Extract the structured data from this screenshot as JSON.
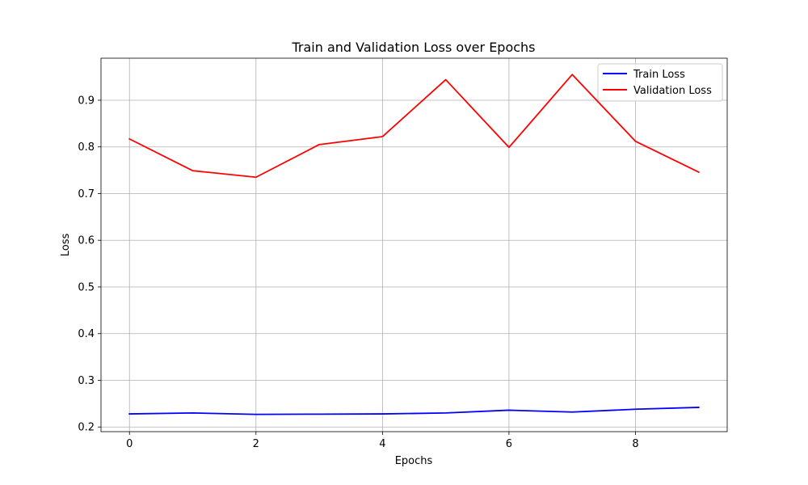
{
  "chart_data": {
    "type": "line",
    "title": "Train and Validation Loss over Epochs",
    "xlabel": "Epochs",
    "ylabel": "Loss",
    "x": [
      0,
      1,
      2,
      3,
      4,
      5,
      6,
      7,
      8,
      9
    ],
    "xlim": [
      -0.45,
      9.45
    ],
    "ylim": [
      0.19,
      0.99
    ],
    "x_ticks": [
      0,
      2,
      4,
      6,
      8
    ],
    "y_ticks": [
      0.2,
      0.3,
      0.4,
      0.5,
      0.6,
      0.7,
      0.8,
      0.9
    ],
    "x_tick_labels": [
      "0",
      "2",
      "4",
      "6",
      "8"
    ],
    "y_tick_labels": [
      "0.2",
      "0.3",
      "0.4",
      "0.5",
      "0.6",
      "0.7",
      "0.8",
      "0.9"
    ],
    "grid": true,
    "legend_position": "top-right",
    "series": [
      {
        "name": "Train Loss",
        "color": "#0000ff",
        "values": [
          0.228,
          0.23,
          0.227,
          0.2275,
          0.228,
          0.23,
          0.236,
          0.232,
          0.238,
          0.242
        ]
      },
      {
        "name": "Validation Loss",
        "color": "#ff0000",
        "values": [
          0.817,
          0.749,
          0.735,
          0.805,
          0.822,
          0.944,
          0.799,
          0.955,
          0.812,
          0.746
        ]
      }
    ]
  }
}
